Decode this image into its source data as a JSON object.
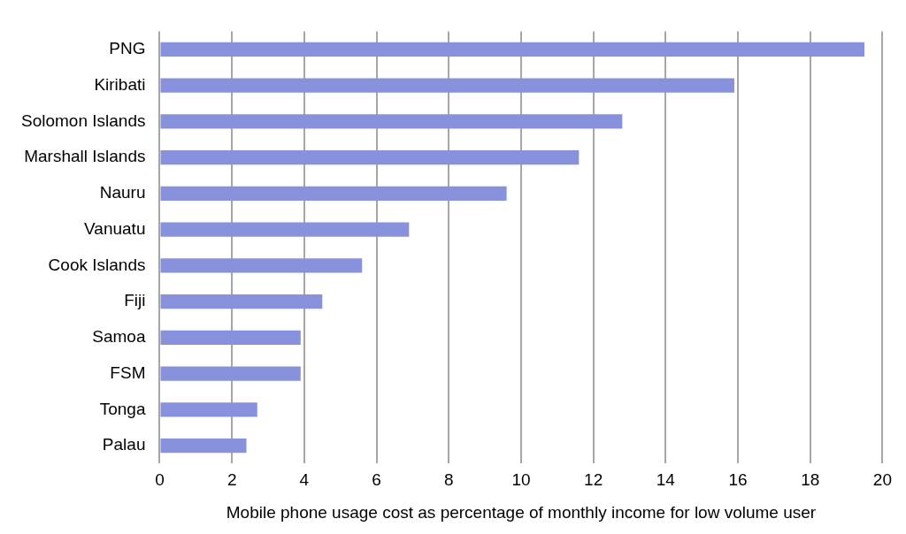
{
  "chart_data": {
    "type": "bar",
    "orientation": "horizontal",
    "xlabel": "Mobile phone usage cost as percentage of monthly income for low volume user",
    "categories": [
      "PNG",
      "Kiribati",
      "Solomon Islands",
      "Marshall Islands",
      "Nauru",
      "Vanuatu",
      "Cook Islands",
      "Fiji",
      "Samoa",
      "FSM",
      "Tonga",
      "Palau"
    ],
    "values": [
      19.5,
      15.9,
      12.8,
      11.6,
      9.6,
      6.9,
      5.6,
      4.5,
      3.9,
      3.9,
      2.7,
      2.4
    ],
    "color": "#8891db",
    "xlim": [
      0,
      20
    ],
    "xticks": [
      0,
      2,
      4,
      6,
      8,
      10,
      12,
      14,
      16,
      18,
      20
    ],
    "grid": "x"
  }
}
